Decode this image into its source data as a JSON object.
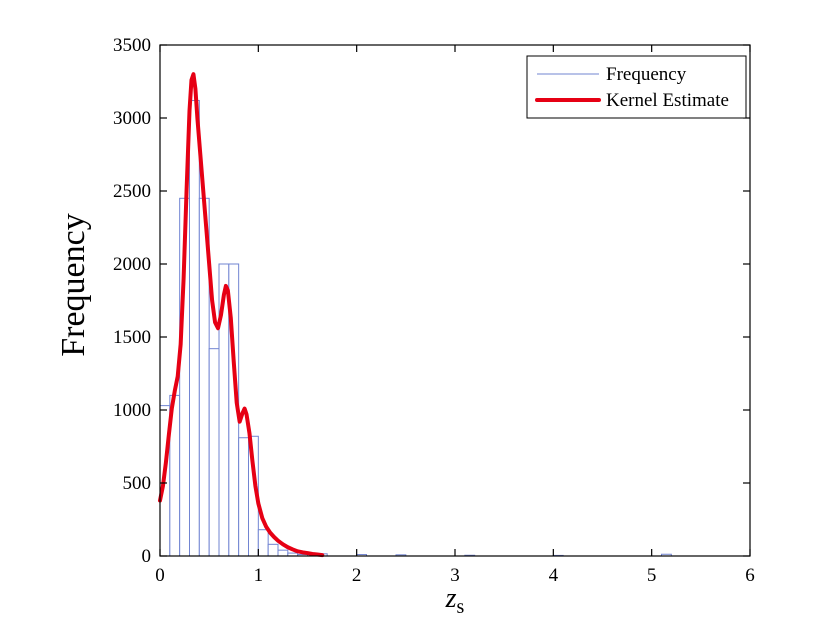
{
  "figure": {
    "background": "#ffffff",
    "axis_color": "#000000",
    "bar_edge_color": "#7285d2",
    "bar_fill_color": "#ffffff",
    "kernel_color": "#e60014",
    "kernel_line_width": 4,
    "bar_line_width": 1
  },
  "chart_data": {
    "type": "bar",
    "title": "",
    "xlabel": "z_s",
    "xlabel_main": "z",
    "xlabel_sub": "s",
    "ylabel": "Frequency",
    "xlim": [
      0,
      6
    ],
    "ylim": [
      0,
      3500
    ],
    "xticks": [
      0,
      1,
      2,
      3,
      4,
      5,
      6
    ],
    "yticks": [
      0,
      500,
      1000,
      1500,
      2000,
      2500,
      3000,
      3500
    ],
    "grid": false,
    "legend_position": "top-right",
    "legend": [
      {
        "label": "Frequency",
        "style": "thin-blue-line"
      },
      {
        "label": "Kernel Estimate",
        "style": "thick-red-line"
      }
    ],
    "histogram": {
      "bin_width": 0.1,
      "bins": [
        [
          0.0,
          1030
        ],
        [
          0.1,
          1100
        ],
        [
          0.2,
          2450
        ],
        [
          0.3,
          3120
        ],
        [
          0.4,
          2450
        ],
        [
          0.5,
          1420
        ],
        [
          0.6,
          2000
        ],
        [
          0.7,
          2000
        ],
        [
          0.8,
          810
        ],
        [
          0.9,
          820
        ],
        [
          1.0,
          180
        ],
        [
          1.1,
          80
        ],
        [
          1.2,
          40
        ],
        [
          1.3,
          20
        ],
        [
          1.4,
          10
        ],
        [
          1.6,
          15
        ],
        [
          2.0,
          10
        ],
        [
          2.4,
          8
        ],
        [
          3.1,
          5
        ],
        [
          4.0,
          4
        ],
        [
          5.1,
          12
        ]
      ]
    },
    "kernel_curve": {
      "points": [
        [
          0.0,
          380
        ],
        [
          0.03,
          480
        ],
        [
          0.06,
          640
        ],
        [
          0.09,
          830
        ],
        [
          0.12,
          1010
        ],
        [
          0.15,
          1130
        ],
        [
          0.18,
          1230
        ],
        [
          0.21,
          1450
        ],
        [
          0.24,
          1900
        ],
        [
          0.27,
          2500
        ],
        [
          0.3,
          3050
        ],
        [
          0.32,
          3260
        ],
        [
          0.34,
          3300
        ],
        [
          0.36,
          3200
        ],
        [
          0.38,
          3000
        ],
        [
          0.41,
          2750
        ],
        [
          0.44,
          2500
        ],
        [
          0.47,
          2250
        ],
        [
          0.5,
          2000
        ],
        [
          0.53,
          1750
        ],
        [
          0.56,
          1600
        ],
        [
          0.59,
          1560
        ],
        [
          0.62,
          1650
        ],
        [
          0.65,
          1790
        ],
        [
          0.67,
          1850
        ],
        [
          0.69,
          1820
        ],
        [
          0.72,
          1630
        ],
        [
          0.75,
          1330
        ],
        [
          0.78,
          1050
        ],
        [
          0.81,
          920
        ],
        [
          0.84,
          980
        ],
        [
          0.86,
          1010
        ],
        [
          0.88,
          970
        ],
        [
          0.91,
          840
        ],
        [
          0.94,
          650
        ],
        [
          0.97,
          480
        ],
        [
          1.0,
          360
        ],
        [
          1.04,
          260
        ],
        [
          1.08,
          200
        ],
        [
          1.12,
          160
        ],
        [
          1.16,
          130
        ],
        [
          1.2,
          105
        ],
        [
          1.25,
          80
        ],
        [
          1.3,
          60
        ],
        [
          1.35,
          45
        ],
        [
          1.4,
          32
        ],
        [
          1.45,
          25
        ],
        [
          1.5,
          20
        ],
        [
          1.55,
          14
        ],
        [
          1.6,
          10
        ],
        [
          1.65,
          6
        ]
      ]
    }
  }
}
